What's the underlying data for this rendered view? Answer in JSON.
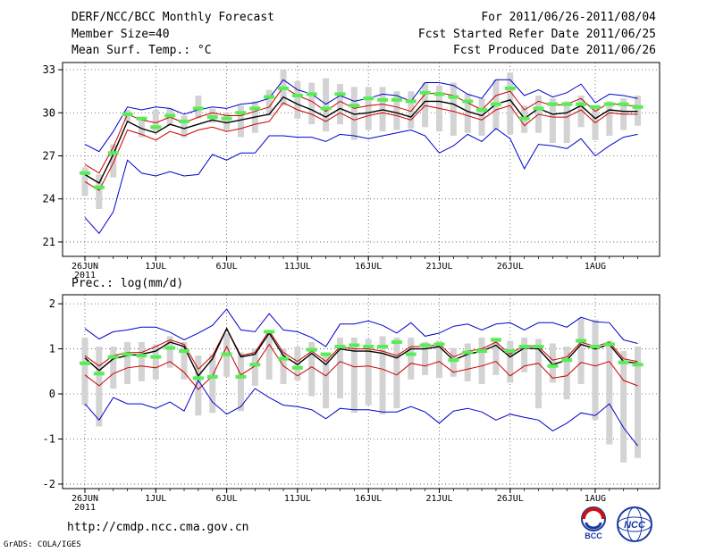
{
  "header": {
    "title": "DERF/NCC/BCC Monthly Forecast",
    "member_size": "Member Size=40",
    "panel1_label": "Mean Surf. Temp.: °C",
    "forecast_period": "For 2011/06/26-2011/08/04",
    "started_date": "Fcst Started Refer Date 2011/06/25",
    "produced_date": "Fcst Produced Date 2011/06/26"
  },
  "panel2_label": "Prec.: log(mm/d)",
  "url": "http://cmdp.ncc.cma.gov.cn",
  "grads_credit": "GrADS: COLA/IGES",
  "logos": {
    "bcc": "BCC",
    "ncc": "NCC"
  },
  "colors": {
    "max_min": "#0000cc",
    "pct_hi_lo": "#cc0000",
    "mean": "#000000",
    "range_bar": "#d3d3d3",
    "marker": "#55ee55"
  },
  "chart_data": [
    {
      "type": "line",
      "title": "Mean Surf. Temp.: °C",
      "x_start": "2011-06-26",
      "x_tick_labels": [
        "26JUN\n2011",
        "1JUL",
        "6JUL",
        "11JUL",
        "16JUL",
        "21JUL",
        "26JUL",
        "1AUG"
      ],
      "x_tick_days": [
        0,
        5,
        10,
        15,
        20,
        25,
        30,
        36
      ],
      "yticks": [
        21,
        24,
        27,
        30,
        33
      ],
      "ylim": [
        20,
        33.5
      ],
      "grid": true,
      "series": [
        {
          "name": "max",
          "values": [
            27.8,
            27.3,
            28.7,
            30.4,
            30.2,
            30.4,
            30.3,
            29.9,
            30.2,
            30.4,
            30.3,
            30.6,
            30.7,
            31.0,
            32.3,
            31.6,
            31.3,
            30.6,
            31.2,
            30.8,
            31.0,
            31.3,
            31.2,
            30.8,
            32.1,
            32.1,
            31.9,
            31.3,
            31.0,
            32.3,
            32.3,
            31.2,
            31.6,
            31.1,
            31.4,
            32.0,
            30.7,
            31.3,
            31.2,
            31.0
          ]
        },
        {
          "name": "p_high",
          "values": [
            26.4,
            25.8,
            27.6,
            29.9,
            29.5,
            29.3,
            29.7,
            29.3,
            29.7,
            30.0,
            29.8,
            29.8,
            30.1,
            30.4,
            31.8,
            31.2,
            30.8,
            30.1,
            30.8,
            30.3,
            30.5,
            30.6,
            30.4,
            30.1,
            31.3,
            31.4,
            31.2,
            30.7,
            30.2,
            31.2,
            31.5,
            30.2,
            30.8,
            30.5,
            30.6,
            31.0,
            30.1,
            30.7,
            30.5,
            30.5
          ]
        },
        {
          "name": "mean",
          "values": [
            25.7,
            25.1,
            27.1,
            29.4,
            28.9,
            28.6,
            29.2,
            28.9,
            29.2,
            29.5,
            29.3,
            29.5,
            29.7,
            29.9,
            31.1,
            30.6,
            30.2,
            29.7,
            30.3,
            29.9,
            30.0,
            30.2,
            30.0,
            29.7,
            30.8,
            30.8,
            30.6,
            30.1,
            29.8,
            30.6,
            30.9,
            29.6,
            30.3,
            29.9,
            30.0,
            30.5,
            29.6,
            30.2,
            30.1,
            30.1
          ]
        },
        {
          "name": "p_low",
          "values": [
            25.2,
            24.6,
            26.5,
            28.8,
            28.5,
            28.1,
            28.7,
            28.4,
            28.8,
            29.0,
            28.7,
            28.9,
            29.2,
            29.4,
            30.7,
            30.2,
            29.9,
            29.4,
            30.0,
            29.5,
            29.8,
            30.0,
            29.8,
            29.5,
            30.5,
            30.3,
            30.1,
            29.8,
            29.5,
            30.2,
            30.5,
            29.1,
            29.9,
            29.7,
            29.7,
            30.2,
            29.3,
            30.0,
            29.9,
            29.9
          ]
        },
        {
          "name": "min",
          "values": [
            22.7,
            21.6,
            23.1,
            26.7,
            25.8,
            25.6,
            25.9,
            25.6,
            25.7,
            27.1,
            26.7,
            27.2,
            27.2,
            28.4,
            28.4,
            28.3,
            28.3,
            28.0,
            28.5,
            28.4,
            28.2,
            28.4,
            28.6,
            28.8,
            28.4,
            27.2,
            27.7,
            28.5,
            28.0,
            28.9,
            28.2,
            26.1,
            27.8,
            27.7,
            27.5,
            28.2,
            27.0,
            27.7,
            28.3,
            28.5
          ]
        }
      ],
      "bars": [
        [
          24.2,
          26.2
        ],
        [
          23.3,
          25.7
        ],
        [
          25.5,
          27.8
        ],
        [
          29.4,
          30.2
        ],
        [
          28.3,
          29.5
        ],
        [
          28.7,
          30.2
        ],
        [
          29.1,
          30.3
        ],
        [
          28.3,
          29.8
        ],
        [
          29.6,
          31.2
        ],
        [
          29.3,
          30.3
        ],
        [
          28.8,
          30.0
        ],
        [
          28.3,
          30.5
        ],
        [
          28.6,
          30.8
        ],
        [
          29.8,
          31.6
        ],
        [
          30.5,
          33.0
        ],
        [
          29.6,
          32.2
        ],
        [
          29.2,
          32.1
        ],
        [
          28.7,
          32.4
        ],
        [
          29.2,
          32.0
        ],
        [
          28.1,
          31.8
        ],
        [
          28.8,
          31.8
        ],
        [
          28.7,
          31.8
        ],
        [
          28.8,
          31.5
        ],
        [
          28.9,
          31.5
        ],
        [
          29.0,
          32.1
        ],
        [
          28.7,
          31.9
        ],
        [
          28.4,
          32.1
        ],
        [
          28.6,
          31.3
        ],
        [
          28.4,
          31.0
        ],
        [
          28.8,
          32.3
        ],
        [
          28.5,
          32.8
        ],
        [
          28.6,
          30.5
        ],
        [
          28.6,
          31.2
        ],
        [
          27.9,
          31.0
        ],
        [
          27.9,
          30.8
        ],
        [
          29.0,
          31.2
        ],
        [
          28.1,
          30.5
        ],
        [
          28.4,
          30.8
        ],
        [
          28.8,
          31.0
        ],
        [
          29.1,
          31.2
        ]
      ],
      "markers": [
        25.8,
        24.8,
        27.2,
        29.9,
        29.6,
        29.0,
        29.8,
        29.4,
        30.3,
        29.7,
        29.6,
        30.0,
        30.3,
        31.1,
        31.7,
        31.2,
        31.3,
        30.3,
        31.3,
        30.5,
        31.0,
        30.9,
        30.9,
        30.8,
        31.4,
        31.3,
        31.1,
        30.8,
        30.2,
        30.6,
        31.7,
        29.6,
        30.3,
        30.6,
        30.6,
        30.6,
        30.4,
        30.6,
        30.6,
        30.4
      ]
    },
    {
      "type": "line",
      "title": "Prec.: log(mm/d)",
      "x_start": "2011-06-26",
      "x_tick_labels": [
        "26JUN\n2011",
        "1JUL",
        "6JUL",
        "11JUL",
        "16JUL",
        "21JUL",
        "26JUL",
        "1AUG"
      ],
      "x_tick_days": [
        0,
        5,
        10,
        15,
        20,
        25,
        30,
        36
      ],
      "yticks": [
        -2,
        -1,
        0,
        1,
        2
      ],
      "ylim": [
        -2.1,
        2.2
      ],
      "grid": true,
      "series": [
        {
          "name": "max",
          "values": [
            1.45,
            1.22,
            1.38,
            1.42,
            1.48,
            1.48,
            1.37,
            1.2,
            1.35,
            1.52,
            1.88,
            1.42,
            1.38,
            1.78,
            1.42,
            1.38,
            1.25,
            1.05,
            1.55,
            1.55,
            1.62,
            1.52,
            1.35,
            1.58,
            1.28,
            1.35,
            1.5,
            1.55,
            1.42,
            1.55,
            1.58,
            1.42,
            1.58,
            1.58,
            1.48,
            1.7,
            1.6,
            1.58,
            1.2,
            1.12
          ]
        },
        {
          "name": "p_high",
          "values": [
            0.85,
            0.62,
            0.85,
            0.92,
            0.92,
            1.05,
            1.2,
            1.1,
            0.55,
            0.85,
            1.45,
            0.85,
            0.92,
            1.4,
            0.92,
            0.72,
            0.95,
            0.72,
            1.05,
            1.0,
            1.0,
            0.95,
            0.85,
            1.05,
            1.05,
            1.1,
            0.82,
            0.95,
            1.0,
            1.15,
            0.88,
            1.08,
            1.05,
            0.75,
            0.82,
            1.15,
            1.05,
            1.15,
            0.78,
            0.72
          ]
        },
        {
          "name": "mean",
          "values": [
            0.8,
            0.52,
            0.78,
            0.85,
            0.88,
            0.95,
            1.15,
            1.05,
            0.4,
            0.78,
            1.45,
            0.82,
            0.88,
            1.35,
            0.85,
            0.65,
            0.9,
            0.65,
            1.0,
            0.95,
            0.95,
            0.9,
            0.8,
            1.0,
            1.0,
            1.05,
            0.75,
            0.88,
            0.95,
            1.08,
            0.82,
            1.02,
            1.0,
            0.65,
            0.75,
            1.1,
            1.0,
            1.1,
            0.72,
            0.68
          ]
        },
        {
          "name": "p_low",
          "values": [
            0.42,
            0.18,
            0.45,
            0.58,
            0.62,
            0.58,
            0.72,
            0.48,
            0.1,
            0.4,
            1.05,
            0.42,
            0.62,
            1.1,
            0.62,
            0.4,
            0.6,
            0.4,
            0.72,
            0.6,
            0.62,
            0.55,
            0.42,
            0.68,
            0.62,
            0.72,
            0.48,
            0.55,
            0.62,
            0.72,
            0.4,
            0.62,
            0.68,
            0.35,
            0.4,
            0.7,
            0.62,
            0.72,
            0.3,
            0.18
          ]
        },
        {
          "name": "min",
          "values": [
            -0.22,
            -0.58,
            -0.08,
            -0.22,
            -0.22,
            -0.32,
            -0.18,
            -0.38,
            0.3,
            -0.18,
            -0.45,
            -0.28,
            0.12,
            -0.08,
            -0.25,
            -0.28,
            -0.35,
            -0.55,
            -0.32,
            -0.35,
            -0.35,
            -0.4,
            -0.4,
            -0.28,
            -0.4,
            -0.65,
            -0.38,
            -0.32,
            -0.4,
            -0.58,
            -0.45,
            -0.52,
            -0.58,
            -0.82,
            -0.65,
            -0.42,
            -0.48,
            -0.22,
            -0.75,
            -1.15
          ]
        }
      ],
      "bars": [
        [
          -0.25,
          1.25
        ],
        [
          -0.72,
          1.05
        ],
        [
          0.12,
          1.05
        ],
        [
          0.22,
          1.15
        ],
        [
          0.28,
          1.15
        ],
        [
          0.32,
          1.1
        ],
        [
          0.58,
          1.28
        ],
        [
          0.32,
          1.15
        ],
        [
          -0.48,
          0.85
        ],
        [
          -0.42,
          0.88
        ],
        [
          0.38,
          1.35
        ],
        [
          -0.38,
          0.92
        ],
        [
          0.18,
          1.0
        ],
        [
          0.32,
          1.38
        ],
        [
          0.22,
          1.0
        ],
        [
          0.3,
          1.05
        ],
        [
          -0.05,
          1.15
        ],
        [
          -0.32,
          0.92
        ],
        [
          -0.1,
          1.25
        ],
        [
          -0.42,
          1.25
        ],
        [
          -0.25,
          1.22
        ],
        [
          -0.45,
          1.28
        ],
        [
          -0.32,
          1.25
        ],
        [
          0.32,
          1.25
        ],
        [
          0.42,
          1.15
        ],
        [
          0.35,
          1.18
        ],
        [
          0.38,
          1.02
        ],
        [
          0.28,
          1.12
        ],
        [
          0.22,
          1.25
        ],
        [
          0.42,
          1.25
        ],
        [
          0.25,
          1.18
        ],
        [
          0.48,
          1.25
        ],
        [
          -0.32,
          1.22
        ],
        [
          0.25,
          1.12
        ],
        [
          -0.12,
          1.05
        ],
        [
          0.22,
          1.68
        ],
        [
          -0.58,
          1.65
        ],
        [
          -1.12,
          1.18
        ],
        [
          -1.52,
          0.95
        ],
        [
          -1.42,
          1.05
        ]
      ],
      "markers": [
        0.68,
        0.45,
        0.82,
        0.88,
        0.85,
        0.82,
        1.02,
        0.95,
        0.35,
        0.38,
        0.88,
        0.38,
        0.65,
        1.38,
        0.78,
        0.58,
        0.98,
        0.88,
        1.05,
        1.08,
        1.05,
        1.05,
        1.15,
        0.88,
        1.08,
        1.1,
        0.75,
        0.92,
        0.95,
        1.2,
        0.95,
        1.05,
        1.05,
        0.62,
        0.75,
        1.18,
        1.05,
        1.1,
        0.7,
        0.65
      ]
    }
  ]
}
